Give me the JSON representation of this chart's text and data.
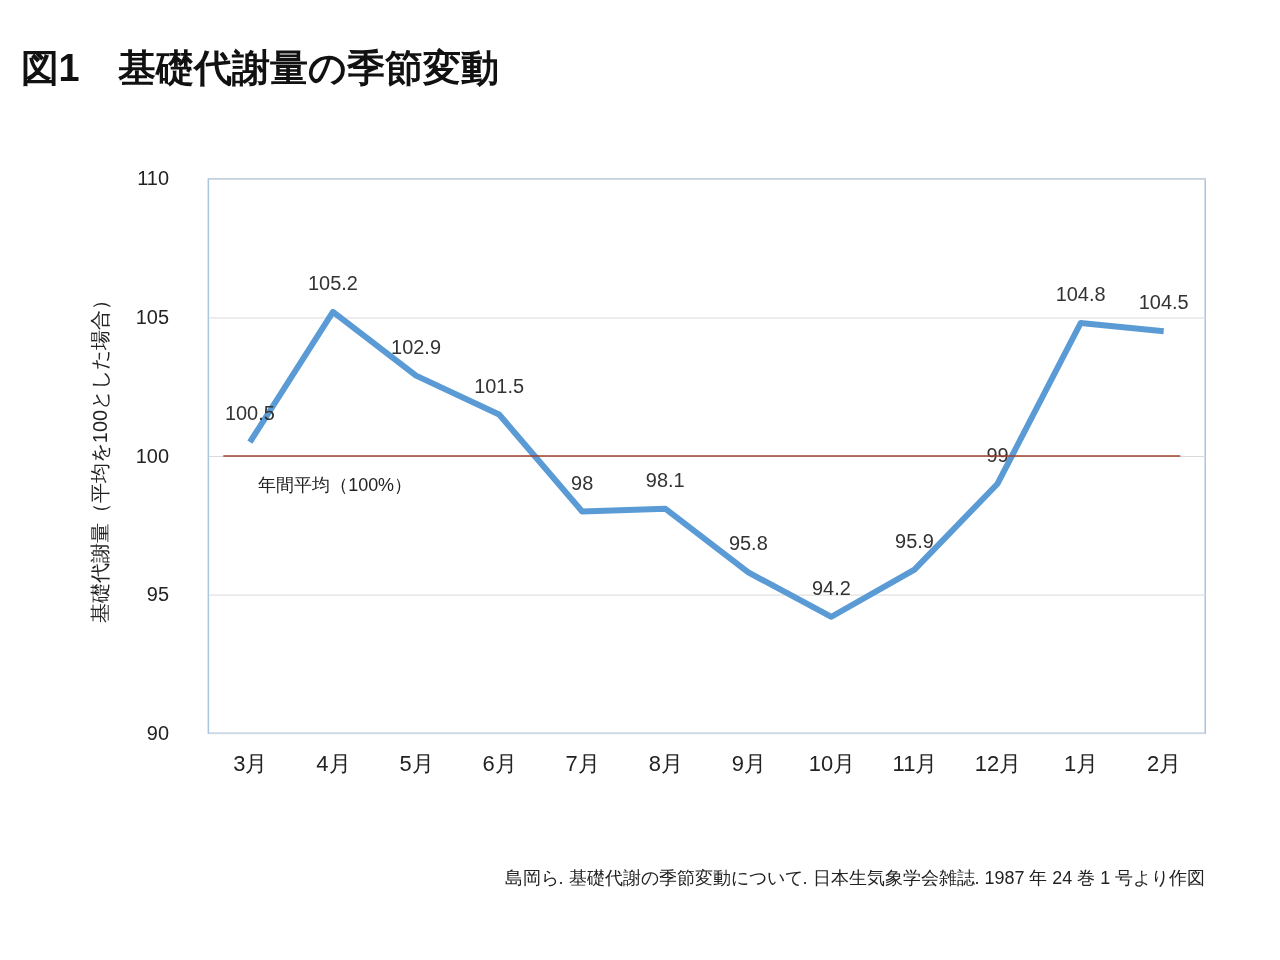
{
  "chart_data": {
    "type": "line",
    "title": "図1　基礎代謝量の季節変動",
    "ylabel": "基礎代謝量（平均を100とした場合）",
    "categories": [
      "3月",
      "4月",
      "5月",
      "6月",
      "7月",
      "8月",
      "9月",
      "10月",
      "11月",
      "12月",
      "1月",
      "2月"
    ],
    "series": [
      {
        "color": "#5b9bd5",
        "values": [
          100.5,
          105.2,
          102.9,
          101.5,
          98,
          98.1,
          95.8,
          94.2,
          95.9,
          99,
          104.8,
          104.5
        ]
      }
    ],
    "ylim": [
      90,
      110
    ],
    "yticks": [
      90,
      95,
      100,
      105,
      110
    ],
    "grid": "y",
    "data_labels": true,
    "marker": "none",
    "line_style": "solid",
    "ref_lines": [
      {
        "axis": "y",
        "value": 100,
        "label": "年間平均（100%）",
        "color": "#a0412d"
      }
    ],
    "annotations": [
      "島岡ら. 基礎代謝の季節変動について. 日本生気象学会雑誌. 1987 年 24 巻 1 号より作図"
    ]
  }
}
